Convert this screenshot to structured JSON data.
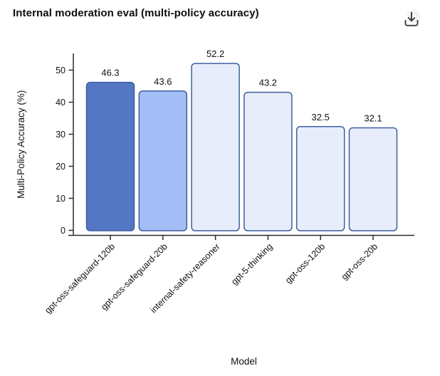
{
  "header": {
    "title": "Internal moderation eval (multi-policy accuracy)",
    "download_icon": "download-icon",
    "watermark_icon": "openai-logo-watermark-icon"
  },
  "chart_data": {
    "type": "bar",
    "title": "Internal moderation eval (multi-policy accuracy)",
    "categories": [
      "gpt-oss-safeguard-120b",
      "gpt-oss-safeguard-20b",
      "internal-safety-reasoner",
      "gpt-5-thinking",
      "gpt-oss-120b",
      "gpt-oss-20b"
    ],
    "values": [
      46.3,
      43.6,
      52.2,
      43.2,
      32.5,
      32.1
    ],
    "value_labels": [
      "46.3",
      "43.6",
      "52.2",
      "43.2",
      "32.5",
      "32.1"
    ],
    "xlabel": "Model",
    "ylabel": "Multi-Policy Accuracy (%)",
    "ylim": [
      0,
      55.5
    ],
    "yticks": [
      0,
      10,
      20,
      30,
      40,
      50
    ],
    "grid": false,
    "legend": "none",
    "tick_label_rotation": 45,
    "bar_fill_colors": [
      "#5377c2",
      "#a3bdf7",
      "#e7edfb",
      "#e7edfb",
      "#e7edfb",
      "#e7edfb"
    ],
    "bar_border_color": "#3f5fa0",
    "axis_color": "#2b2b2b",
    "text_color": "#111111"
  }
}
